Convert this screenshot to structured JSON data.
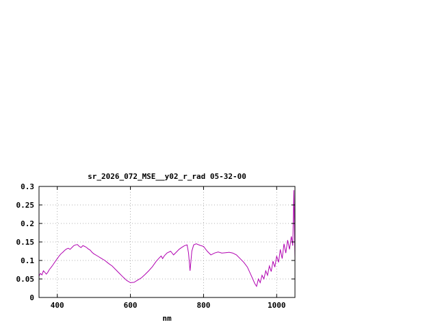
{
  "chart_data": {
    "type": "line",
    "title": "sr_2026_072_MSE__y02_r_rad 05-32-00",
    "xlabel": "nm",
    "ylabel": "",
    "xlim": [
      350,
      1050
    ],
    "ylim": [
      0,
      0.3
    ],
    "xticks": [
      400,
      600,
      800,
      1000
    ],
    "xtick_labels": [
      "400",
      "600",
      "800",
      "1000"
    ],
    "yticks": [
      0,
      0.05,
      0.1,
      0.15,
      0.2,
      0.25,
      0.3
    ],
    "ytick_labels": [
      "0",
      "0.05",
      "0.1",
      "0.15",
      "0.2",
      "0.25",
      "0.3"
    ],
    "grid": true,
    "legend": "none",
    "line_color": "#b000b0",
    "grid_color": "#999999",
    "border_color": "#000000",
    "series": [
      {
        "name": "sr_2026_072_MSE__y02_r_rad",
        "points": [
          [
            350,
            0.058
          ],
          [
            354,
            0.065
          ],
          [
            358,
            0.061
          ],
          [
            362,
            0.072
          ],
          [
            366,
            0.068
          ],
          [
            370,
            0.063
          ],
          [
            374,
            0.068
          ],
          [
            378,
            0.075
          ],
          [
            382,
            0.08
          ],
          [
            386,
            0.085
          ],
          [
            390,
            0.091
          ],
          [
            395,
            0.098
          ],
          [
            400,
            0.105
          ],
          [
            405,
            0.112
          ],
          [
            410,
            0.118
          ],
          [
            415,
            0.122
          ],
          [
            420,
            0.127
          ],
          [
            425,
            0.131
          ],
          [
            430,
            0.133
          ],
          [
            435,
            0.13
          ],
          [
            440,
            0.135
          ],
          [
            445,
            0.14
          ],
          [
            450,
            0.142
          ],
          [
            455,
            0.143
          ],
          [
            460,
            0.138
          ],
          [
            465,
            0.135
          ],
          [
            470,
            0.14
          ],
          [
            475,
            0.138
          ],
          [
            480,
            0.135
          ],
          [
            485,
            0.131
          ],
          [
            490,
            0.128
          ],
          [
            495,
            0.122
          ],
          [
            500,
            0.118
          ],
          [
            510,
            0.112
          ],
          [
            520,
            0.106
          ],
          [
            530,
            0.1
          ],
          [
            540,
            0.092
          ],
          [
            550,
            0.085
          ],
          [
            560,
            0.075
          ],
          [
            570,
            0.065
          ],
          [
            580,
            0.055
          ],
          [
            590,
            0.046
          ],
          [
            600,
            0.04
          ],
          [
            610,
            0.041
          ],
          [
            620,
            0.047
          ],
          [
            630,
            0.053
          ],
          [
            640,
            0.062
          ],
          [
            650,
            0.072
          ],
          [
            660,
            0.083
          ],
          [
            670,
            0.097
          ],
          [
            678,
            0.106
          ],
          [
            684,
            0.112
          ],
          [
            688,
            0.105
          ],
          [
            693,
            0.113
          ],
          [
            700,
            0.12
          ],
          [
            710,
            0.125
          ],
          [
            718,
            0.115
          ],
          [
            725,
            0.122
          ],
          [
            733,
            0.13
          ],
          [
            740,
            0.135
          ],
          [
            748,
            0.14
          ],
          [
            755,
            0.142
          ],
          [
            759,
            0.12
          ],
          [
            763,
            0.072
          ],
          [
            768,
            0.125
          ],
          [
            773,
            0.142
          ],
          [
            780,
            0.145
          ],
          [
            790,
            0.141
          ],
          [
            800,
            0.138
          ],
          [
            810,
            0.125
          ],
          [
            820,
            0.115
          ],
          [
            830,
            0.12
          ],
          [
            840,
            0.123
          ],
          [
            850,
            0.12
          ],
          [
            860,
            0.121
          ],
          [
            870,
            0.122
          ],
          [
            880,
            0.12
          ],
          [
            890,
            0.115
          ],
          [
            900,
            0.105
          ],
          [
            910,
            0.095
          ],
          [
            920,
            0.082
          ],
          [
            930,
            0.06
          ],
          [
            940,
            0.038
          ],
          [
            945,
            0.03
          ],
          [
            950,
            0.05
          ],
          [
            955,
            0.04
          ],
          [
            960,
            0.06
          ],
          [
            965,
            0.05
          ],
          [
            970,
            0.072
          ],
          [
            975,
            0.06
          ],
          [
            980,
            0.085
          ],
          [
            985,
            0.07
          ],
          [
            990,
            0.098
          ],
          [
            995,
            0.082
          ],
          [
            1000,
            0.112
          ],
          [
            1005,
            0.095
          ],
          [
            1010,
            0.13
          ],
          [
            1015,
            0.105
          ],
          [
            1020,
            0.145
          ],
          [
            1025,
            0.12
          ],
          [
            1030,
            0.155
          ],
          [
            1035,
            0.13
          ],
          [
            1040,
            0.165
          ],
          [
            1044,
            0.14
          ],
          [
            1047,
            0.29
          ],
          [
            1049,
            0.16
          ],
          [
            1050,
            0.105
          ]
        ]
      }
    ]
  }
}
